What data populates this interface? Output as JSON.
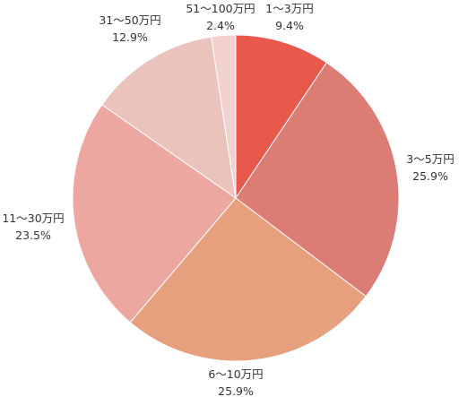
{
  "chart_data": {
    "type": "pie",
    "start": "top",
    "direction": "clockwise",
    "slices": [
      {
        "label": "1〜3万円",
        "value": 9.4,
        "value_text": "9.4%",
        "color": "#e8594c"
      },
      {
        "label": "3〜5万円",
        "value": 25.9,
        "value_text": "25.9%",
        "color": "#db7d74"
      },
      {
        "label": "6〜10万円",
        "value": 25.9,
        "value_text": "25.9%",
        "color": "#e6a07e"
      },
      {
        "label": "11〜30万円",
        "value": 23.5,
        "value_text": "23.5%",
        "color": "#eca8a0"
      },
      {
        "label": "31〜50万円",
        "value": 12.9,
        "value_text": "12.9%",
        "color": "#eac3bd"
      },
      {
        "label": "51〜100万円",
        "value": 2.4,
        "value_text": "2.4%",
        "color": "#f2d1cf"
      }
    ]
  }
}
